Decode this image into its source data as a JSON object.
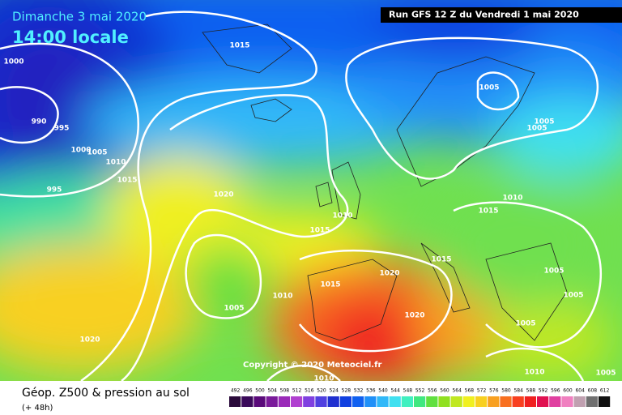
{
  "header": {
    "date": "Dimanche 3 mai 2020",
    "time": "14:00 locale",
    "run": "Run GFS 12 Z du Vendredi 1 mai 2020"
  },
  "copyright": "Copyright © 2020 Meteociel.fr",
  "footer": {
    "title": "Géop. Z500 & pression au sol",
    "lead": "(+ 48h)"
  },
  "legend": {
    "levels": [
      492,
      496,
      500,
      504,
      508,
      512,
      516,
      520,
      524,
      528,
      532,
      536,
      540,
      544,
      548,
      552,
      556,
      560,
      564,
      568,
      572,
      576,
      580,
      584,
      588,
      592,
      596,
      600,
      604,
      608,
      612
    ],
    "colors": [
      "#2a0a3a",
      "#3a0a5a",
      "#5a0a7a",
      "#7a1a9a",
      "#9a2ab8",
      "#b040d0",
      "#8040e0",
      "#5040e0",
      "#2030d0",
      "#1040e0",
      "#1060f0",
      "#2090f8",
      "#30b8f8",
      "#40e0f0",
      "#40f0c0",
      "#40e880",
      "#60e040",
      "#90e020",
      "#c0e820",
      "#f0f020",
      "#f8d020",
      "#f8a020",
      "#f87020",
      "#f84020",
      "#f02020",
      "#e01050",
      "#e040a0",
      "#f080c0",
      "#c0a0b0",
      "#707070",
      "#101010"
    ]
  },
  "isobar_labels": [
    "1000",
    "990",
    "995",
    "1000",
    "1005",
    "1010",
    "1015",
    "995",
    "1015",
    "1020",
    "1010",
    "1015",
    "1005",
    "1005",
    "1005",
    "1010",
    "1015",
    "1015",
    "1020",
    "1015",
    "1010",
    "1005",
    "1020",
    "1005",
    "1005",
    "1005",
    "1010",
    "1020",
    "1010",
    "1005"
  ]
}
